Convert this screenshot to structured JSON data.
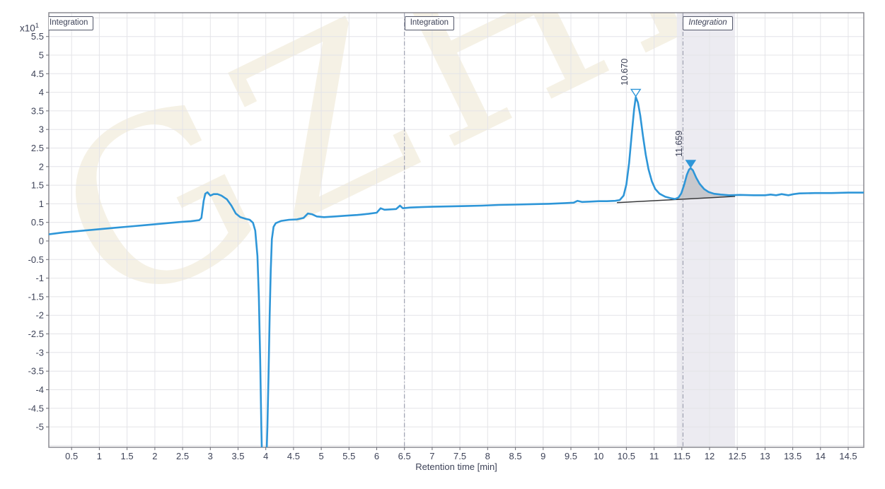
{
  "watermark": {
    "text": "GZHLM",
    "color": "#f4efe1"
  },
  "colors": {
    "trace": "#2e96d8",
    "grid": "#e4e4e8",
    "plot_border": "#8b8b92",
    "tick": "#6b6b73",
    "axis_text": "#3e4358",
    "band": "#ecebf1",
    "peak_fill": "#c3c4c9",
    "baseline": "#37383a",
    "region_line": "#9094a6",
    "marker_open_fill": "#ffffff"
  },
  "chart_data": {
    "type": "line",
    "title": "",
    "xlabel": "Retention time [min]",
    "y_unit_base": "x10",
    "y_unit_exp": "1",
    "xlim": [
      0.089,
      14.78
    ],
    "ylim": [
      -5.55,
      6.14
    ],
    "grid": true,
    "legend": "none",
    "x_ticks": {
      "values": [
        0.5,
        1,
        1.5,
        2,
        2.5,
        3,
        3.5,
        4,
        4.5,
        5,
        5.5,
        6,
        6.5,
        7,
        7.5,
        8,
        8.5,
        9,
        9.5,
        10,
        10.5,
        11,
        11.5,
        12,
        12.5,
        13,
        13.5,
        14,
        14.5
      ],
      "labels": [
        "0.5",
        "1",
        "1.5",
        "2",
        "2.5",
        "3",
        "3.5",
        "4",
        "4.5",
        "5",
        "5.5",
        "6",
        "6.5",
        "7",
        "7.5",
        "8",
        "8.5",
        "9",
        "9.5",
        "10",
        "10.5",
        "11",
        "11.5",
        "12",
        "12.5",
        "13",
        "13.5",
        "14",
        "14.5"
      ]
    },
    "y_ticks": {
      "values": [
        5.5,
        5,
        4.5,
        4,
        3.5,
        3,
        2.5,
        2,
        1.5,
        1,
        0.5,
        0,
        -0.5,
        -1,
        -1.5,
        -2,
        -2.5,
        -3,
        -3.5,
        -4,
        -4.5,
        -5
      ],
      "labels": [
        "5.5",
        "5",
        "4.5",
        "4",
        "3.5",
        "3",
        "2.5",
        "2",
        "1.5",
        "1",
        "0.5",
        "0",
        "-0.5",
        "-1",
        "-1.5",
        "-2",
        "-2.5",
        "-3",
        "-3.5",
        "-4",
        "-4.5",
        "-5"
      ]
    },
    "y_grid_extra": [
      6,
      -5.5
    ],
    "regions": [
      {
        "label": "Integration",
        "x": 0.0,
        "italic": false,
        "line": false
      },
      {
        "label": "Integration",
        "x": 6.5,
        "italic": false,
        "line": true
      },
      {
        "label": "Integration",
        "x": 11.52,
        "italic": true,
        "line": true,
        "band": [
          11.41,
          12.46
        ]
      }
    ],
    "peaks": [
      {
        "label": "10.670",
        "rt": 10.67,
        "apex": 3.87,
        "marker": "triangle-open",
        "filled": false
      },
      {
        "label": "11.659",
        "rt": 11.659,
        "apex": 1.96,
        "marker": "triangle-filled",
        "filled": true,
        "fill_range": [
          11.41,
          12.44
        ]
      }
    ],
    "baseline": {
      "t1": 10.33,
      "v1": 1.03,
      "t2": 12.46,
      "v2": 1.2
    },
    "series": [
      {
        "name": "detector-signal",
        "color": "#2e96d8",
        "points": [
          [
            0.09,
            0.18
          ],
          [
            0.35,
            0.23
          ],
          [
            0.65,
            0.27
          ],
          [
            0.95,
            0.31
          ],
          [
            1.25,
            0.35
          ],
          [
            1.55,
            0.39
          ],
          [
            1.85,
            0.43
          ],
          [
            2.15,
            0.47
          ],
          [
            2.45,
            0.51
          ],
          [
            2.65,
            0.53
          ],
          [
            2.8,
            0.56
          ],
          [
            2.84,
            0.62
          ],
          [
            2.88,
            1.08
          ],
          [
            2.91,
            1.27
          ],
          [
            2.95,
            1.31
          ],
          [
            3.0,
            1.22
          ],
          [
            3.06,
            1.26
          ],
          [
            3.13,
            1.26
          ],
          [
            3.2,
            1.22
          ],
          [
            3.3,
            1.12
          ],
          [
            3.38,
            0.95
          ],
          [
            3.46,
            0.74
          ],
          [
            3.54,
            0.64
          ],
          [
            3.63,
            0.6
          ],
          [
            3.71,
            0.57
          ],
          [
            3.77,
            0.49
          ],
          [
            3.81,
            0.28
          ],
          [
            3.85,
            -0.4
          ],
          [
            3.875,
            -1.5
          ],
          [
            3.9,
            -3.2
          ],
          [
            3.92,
            -5.0
          ],
          [
            3.94,
            -6.4
          ],
          [
            4.0,
            -6.4
          ],
          [
            4.03,
            -5.0
          ],
          [
            4.05,
            -3.6
          ],
          [
            4.07,
            -2.0
          ],
          [
            4.09,
            -0.8
          ],
          [
            4.11,
            0.05
          ],
          [
            4.14,
            0.38
          ],
          [
            4.18,
            0.48
          ],
          [
            4.28,
            0.54
          ],
          [
            4.42,
            0.57
          ],
          [
            4.56,
            0.58
          ],
          [
            4.68,
            0.62
          ],
          [
            4.76,
            0.74
          ],
          [
            4.83,
            0.72
          ],
          [
            4.92,
            0.66
          ],
          [
            5.05,
            0.64
          ],
          [
            5.25,
            0.66
          ],
          [
            5.45,
            0.68
          ],
          [
            5.65,
            0.7
          ],
          [
            5.85,
            0.73
          ],
          [
            6.0,
            0.76
          ],
          [
            6.07,
            0.88
          ],
          [
            6.14,
            0.84
          ],
          [
            6.25,
            0.85
          ],
          [
            6.35,
            0.86
          ],
          [
            6.42,
            0.95
          ],
          [
            6.47,
            0.88
          ],
          [
            6.6,
            0.9
          ],
          [
            6.8,
            0.91
          ],
          [
            7.0,
            0.92
          ],
          [
            7.3,
            0.93
          ],
          [
            7.6,
            0.94
          ],
          [
            7.9,
            0.95
          ],
          [
            8.2,
            0.97
          ],
          [
            8.5,
            0.98
          ],
          [
            8.8,
            0.99
          ],
          [
            9.1,
            1.0
          ],
          [
            9.4,
            1.02
          ],
          [
            9.55,
            1.03
          ],
          [
            9.62,
            1.08
          ],
          [
            9.7,
            1.05
          ],
          [
            9.85,
            1.06
          ],
          [
            10.0,
            1.07
          ],
          [
            10.15,
            1.07
          ],
          [
            10.3,
            1.08
          ],
          [
            10.38,
            1.1
          ],
          [
            10.45,
            1.22
          ],
          [
            10.5,
            1.52
          ],
          [
            10.55,
            2.1
          ],
          [
            10.6,
            2.92
          ],
          [
            10.64,
            3.55
          ],
          [
            10.67,
            3.87
          ],
          [
            10.71,
            3.72
          ],
          [
            10.75,
            3.38
          ],
          [
            10.8,
            2.82
          ],
          [
            10.85,
            2.32
          ],
          [
            10.9,
            1.93
          ],
          [
            10.96,
            1.6
          ],
          [
            11.02,
            1.4
          ],
          [
            11.1,
            1.27
          ],
          [
            11.2,
            1.19
          ],
          [
            11.3,
            1.15
          ],
          [
            11.38,
            1.13
          ],
          [
            11.44,
            1.17
          ],
          [
            11.49,
            1.28
          ],
          [
            11.54,
            1.5
          ],
          [
            11.59,
            1.78
          ],
          [
            11.63,
            1.92
          ],
          [
            11.66,
            1.96
          ],
          [
            11.7,
            1.9
          ],
          [
            11.76,
            1.7
          ],
          [
            11.82,
            1.54
          ],
          [
            11.9,
            1.4
          ],
          [
            11.98,
            1.32
          ],
          [
            12.08,
            1.27
          ],
          [
            12.2,
            1.25
          ],
          [
            12.35,
            1.23
          ],
          [
            12.55,
            1.24
          ],
          [
            12.8,
            1.23
          ],
          [
            13.0,
            1.23
          ],
          [
            13.1,
            1.25
          ],
          [
            13.2,
            1.23
          ],
          [
            13.3,
            1.26
          ],
          [
            13.42,
            1.23
          ],
          [
            13.52,
            1.26
          ],
          [
            13.62,
            1.28
          ],
          [
            13.9,
            1.29
          ],
          [
            14.2,
            1.29
          ],
          [
            14.5,
            1.3
          ],
          [
            14.78,
            1.3
          ]
        ]
      }
    ]
  }
}
